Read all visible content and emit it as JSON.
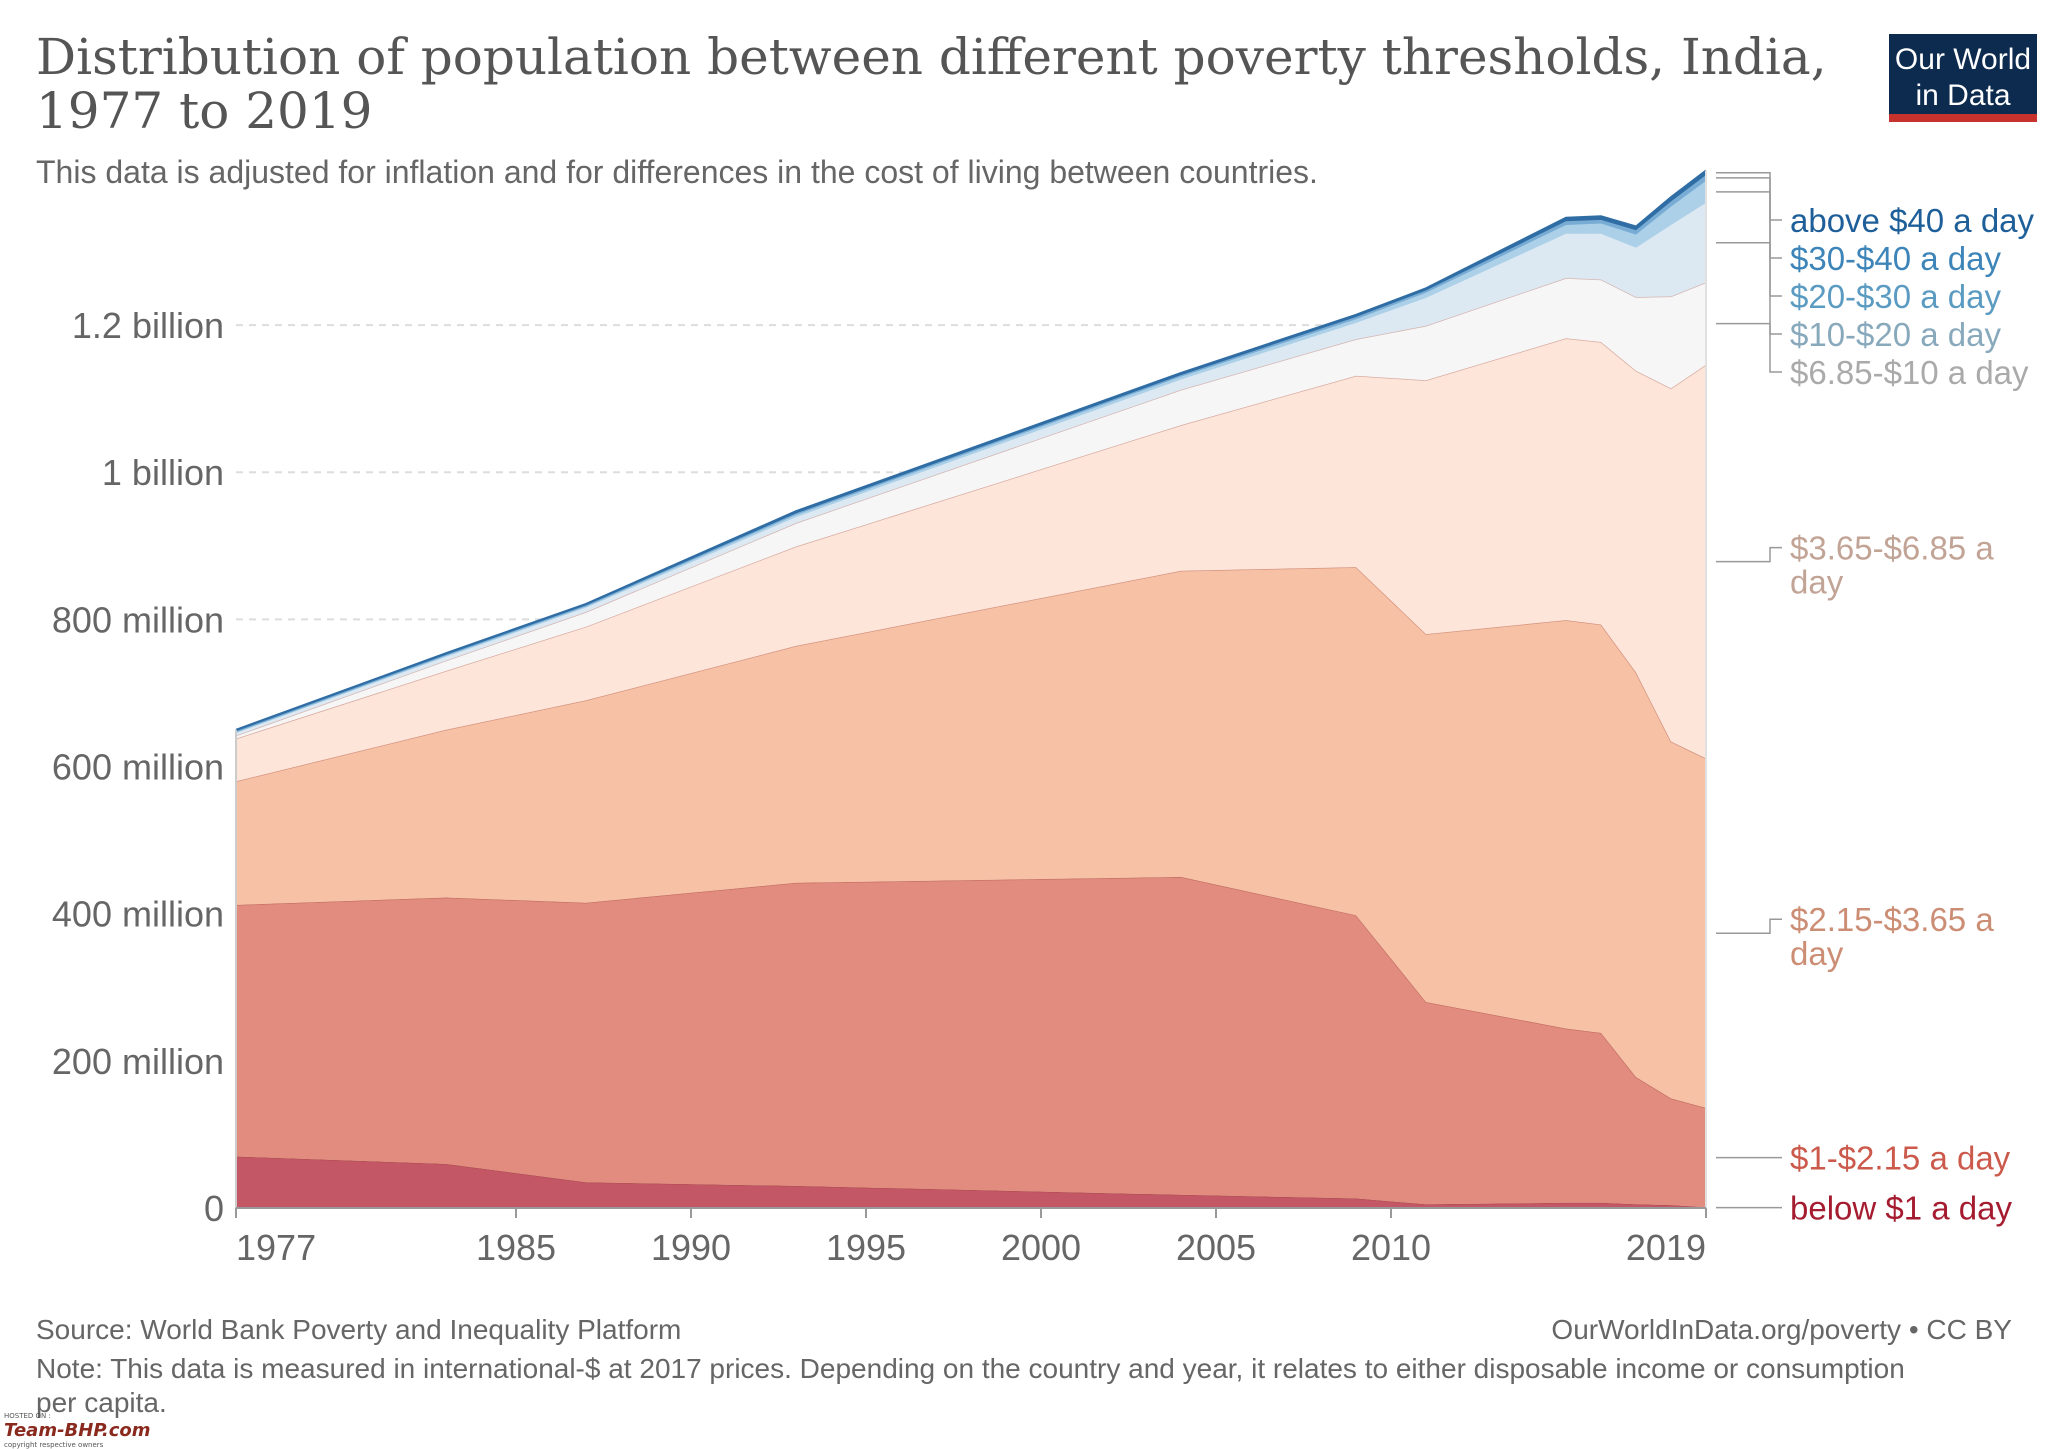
{
  "header": {
    "title": "Distribution of population between different poverty thresholds, India, 1977 to 2019",
    "subtitle": "This data is adjusted for inflation and for differences in the cost of living between countries."
  },
  "logo": {
    "line1": "Our World",
    "line2": "in Data",
    "bg_color": "#0d2a4f",
    "accent_color": "#c8322c"
  },
  "footer": {
    "source": "Source: World Bank Poverty and Inequality Platform",
    "license": "OurWorldInData.org/poverty • CC BY",
    "note": "Note: This data is measured in international-$ at 2017 prices. Depending on the country and year, it relates to either disposable income or consumption per capita."
  },
  "watermark": {
    "hosted_on": "HOSTED ON :",
    "brand": "Team-BHP.com",
    "copyright": "copyright respective owners"
  },
  "chart_data": {
    "type": "area",
    "stacked": true,
    "title": "Distribution of population between different poverty thresholds, India, 1977 to 2019",
    "xlabel": "",
    "ylabel": "",
    "x_ticks": [
      1977,
      1985,
      1990,
      1995,
      2000,
      2005,
      2010,
      2019
    ],
    "y_ticks": [
      {
        "value": 0,
        "label": "0"
      },
      {
        "value": 200000000,
        "label": "200 million"
      },
      {
        "value": 400000000,
        "label": "400 million"
      },
      {
        "value": 600000000,
        "label": "600 million"
      },
      {
        "value": 800000000,
        "label": "800 million"
      },
      {
        "value": 1000000000,
        "label": "1 billion"
      },
      {
        "value": 1200000000,
        "label": "1.2 billion"
      }
    ],
    "xlim": [
      1977,
      2019
    ],
    "ylim": [
      0,
      1370000000
    ],
    "grid": "horizontal dashed",
    "legend": "right, labels at series ends",
    "x": [
      1977,
      1983,
      1987,
      1993,
      2004,
      2009,
      2011,
      2015,
      2016,
      2017,
      2018,
      2019
    ],
    "series": [
      {
        "name": "below $1 a day",
        "color": "#c45765",
        "label_color": "#a51c30",
        "values": [
          70,
          60,
          35,
          30,
          18,
          13,
          5,
          7,
          7,
          5,
          4,
          1
        ]
      },
      {
        "name": "$1-$2.15 a day",
        "color": "#e18c7f",
        "label_color": "#cc5a4c",
        "values": [
          342,
          362,
          380,
          412,
          432,
          385,
          275,
          237,
          231,
          173,
          145,
          135
        ]
      },
      {
        "name": "$2.15-$3.65 a day",
        "color": "#f7c1a6",
        "label_color": "#cc8d75",
        "values": [
          168,
          228,
          275,
          322,
          416,
          473,
          500,
          555,
          555,
          550,
          485,
          475
        ]
      },
      {
        "name": "$3.65-$6.85 a day",
        "color": "#fde5da",
        "label_color": "#c2a496",
        "values": [
          58,
          80,
          100,
          135,
          198,
          260,
          345,
          383,
          384,
          410,
          480,
          535
        ]
      },
      {
        "name": "$6.85-$10 a day",
        "color": "#f6f6f6",
        "label_color": "#aaaaaa",
        "values": [
          4,
          14,
          20,
          32,
          48,
          50,
          74,
          82,
          85,
          100,
          125,
          112
        ]
      },
      {
        "name": "$10-$20 a day",
        "color": "#dce9f3",
        "label_color": "#88a9bc",
        "values": [
          4,
          5,
          6,
          8,
          14,
          22,
          38,
          60,
          62,
          67,
          97,
          108
        ]
      },
      {
        "name": "$20-$30 a day",
        "color": "#acd0e8",
        "label_color": "#5b9bc1",
        "values": [
          1,
          2,
          2,
          3,
          4,
          5,
          7,
          12,
          14,
          18,
          25,
          30
        ]
      },
      {
        "name": "$30-$40 a day",
        "color": "#78acd4",
        "label_color": "#3d84b8",
        "values": [
          1,
          1,
          1,
          2,
          2,
          3,
          3,
          5,
          5,
          6,
          7,
          8
        ]
      },
      {
        "name": "above $40 a day",
        "color": "#2f6da4",
        "label_color": "#1e5f99",
        "values": [
          2,
          2,
          2,
          3,
          3,
          3,
          3,
          5,
          5,
          5,
          6,
          6
        ]
      }
    ],
    "values_unit": "million people"
  }
}
